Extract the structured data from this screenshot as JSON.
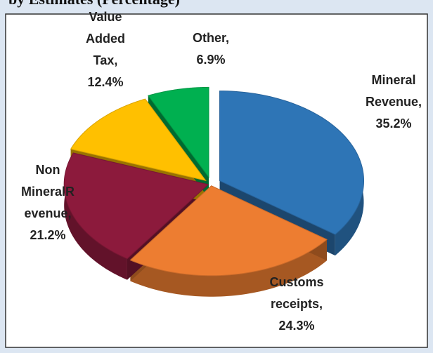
{
  "chart_data": {
    "type": "pie",
    "title": "by Estimates (Percentage)",
    "categories": [
      "Mineral Revenue,",
      "Customs receipts,",
      "Non MineralR evenue,",
      "Value Added Tax,",
      "Other,"
    ],
    "values": [
      35.2,
      24.3,
      21.2,
      12.4,
      6.9
    ],
    "value_labels": [
      "35.2%",
      "24.3%",
      "21.2%",
      "12.4%",
      "6.9%"
    ],
    "colors": [
      "#2e75b6",
      "#ed7d31",
      "#8c1a3c",
      "#ffc000",
      "#00b050"
    ]
  }
}
